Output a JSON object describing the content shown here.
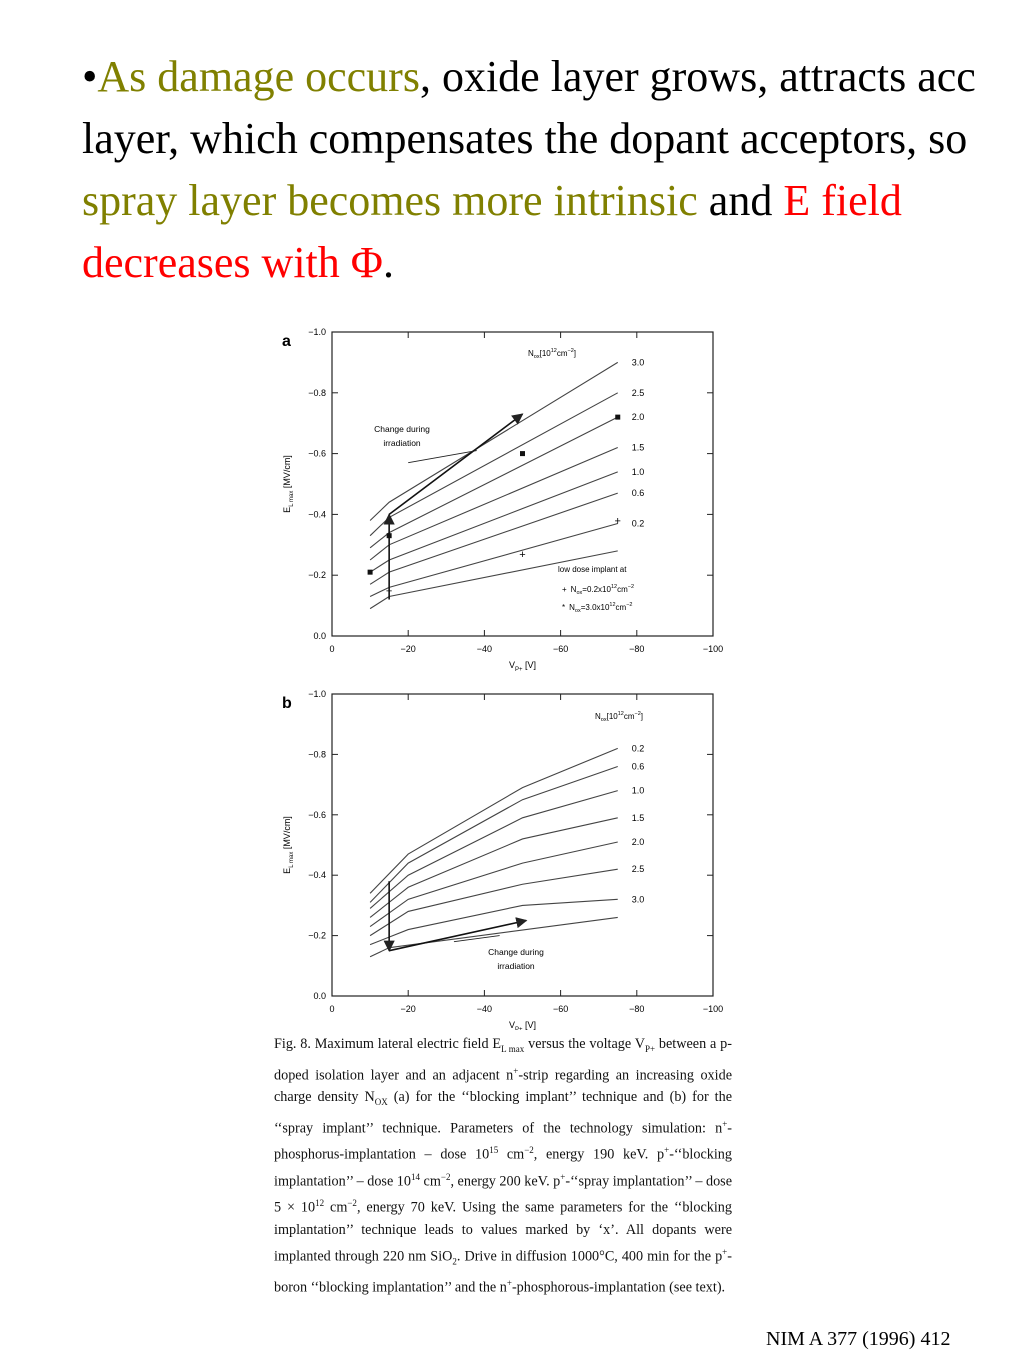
{
  "slide": {
    "bullet": "•",
    "segments": [
      {
        "text": "As damage occurs",
        "color": "olive"
      },
      {
        "text": ", oxide layer grows, attracts acc layer, which compensates the dopant acceptors, so ",
        "color": "black"
      },
      {
        "text": "spray layer becomes more intrinsic",
        "color": "olive"
      },
      {
        "text": " and ",
        "color": "black"
      },
      {
        "text": "E field decreases with Φ",
        "color": "red"
      },
      {
        "text": ".",
        "color": "black"
      }
    ]
  },
  "chart_data": [
    {
      "panel_label": "a",
      "type": "line",
      "xlabel": "V",
      "xlabel_sub": "P+",
      "xlabel_unit": " [V]",
      "ylabel": "E",
      "ylabel_sub": "L max",
      "ylabel_unit": " [MV/cm]",
      "xlim": [
        0,
        -100
      ],
      "ylim": [
        0,
        -1.0
      ],
      "x_ticks": [
        0,
        -20,
        -40,
        -60,
        -80,
        -100
      ],
      "x_tick_labels": [
        "0",
        "−20",
        "−40",
        "−60",
        "−80",
        "−100"
      ],
      "y_ticks": [
        0,
        -0.2,
        -0.4,
        -0.6,
        -0.8,
        -1.0
      ],
      "y_tick_labels": [
        "0.0",
        "−0.2",
        "−0.4",
        "−0.6",
        "−0.8",
        "−1.0"
      ],
      "legend_title": "N",
      "legend_title_sub": "ox",
      "legend_title_unit": "[10",
      "legend_title_exp": "12",
      "legend_title_tail": "cm",
      "legend_title_exp2": "−2",
      "legend_title_end": "]",
      "series": [
        {
          "name": "3.0",
          "x": [
            -10,
            -15,
            -75
          ],
          "y": [
            -0.38,
            -0.44,
            -0.9
          ]
        },
        {
          "name": "2.5",
          "x": [
            -10,
            -15,
            -75
          ],
          "y": [
            -0.33,
            -0.39,
            -0.8
          ]
        },
        {
          "name": "2.0",
          "x": [
            -10,
            -15,
            -75
          ],
          "y": [
            -0.29,
            -0.34,
            -0.72
          ]
        },
        {
          "name": "1.5",
          "x": [
            -10,
            -15,
            -75
          ],
          "y": [
            -0.25,
            -0.3,
            -0.62
          ]
        },
        {
          "name": "1.0",
          "x": [
            -10,
            -15,
            -75
          ],
          "y": [
            -0.21,
            -0.25,
            -0.54
          ]
        },
        {
          "name": "0.6",
          "x": [
            -10,
            -15,
            -75
          ],
          "y": [
            -0.17,
            -0.21,
            -0.47
          ]
        },
        {
          "name": "0.2",
          "x": [
            -10,
            -15,
            -75
          ],
          "y": [
            -0.13,
            -0.16,
            -0.37
          ]
        },
        {
          "name": "",
          "x": [
            -10,
            -15,
            -75
          ],
          "y": [
            -0.09,
            -0.13,
            -0.28
          ]
        }
      ],
      "markers_cross": [
        {
          "x": -15,
          "y": -0.15
        },
        {
          "x": -50,
          "y": -0.27
        },
        {
          "x": -75,
          "y": -0.38
        }
      ],
      "markers_star": [
        {
          "x": -10,
          "y": -0.21
        },
        {
          "x": -15,
          "y": -0.33
        },
        {
          "x": -50,
          "y": -0.6
        },
        {
          "x": -75,
          "y": -0.72
        }
      ],
      "arrows": [
        {
          "from": [
            -15,
            -0.12
          ],
          "to": [
            -15,
            -0.4
          ]
        },
        {
          "from": [
            -15,
            -0.4
          ],
          "to": [
            -50,
            -0.73
          ]
        }
      ],
      "annotation_lines": [
        "Change during",
        "irradiation"
      ],
      "annotation_leader": {
        "from": [
          -38,
          -0.61
        ],
        "to": [
          -20,
          -0.57
        ]
      },
      "inset_title_lines": [
        "low dose implant at"
      ],
      "inset_entries": [
        {
          "symbol": "+",
          "text_pre": "N",
          "text_sub": "ox",
          "text_post": "=0.2x10",
          "text_exp": "12",
          "text_end": "cm",
          "text_exp2": "−2"
        },
        {
          "symbol": "*",
          "text_pre": "N",
          "text_sub": "ox",
          "text_post": "=3.0x10",
          "text_exp": "12",
          "text_end": "cm",
          "text_exp2": "−2"
        }
      ]
    },
    {
      "panel_label": "b",
      "type": "line",
      "xlabel": "V",
      "xlabel_sub": "P+",
      "xlabel_unit": " [V]",
      "ylabel": "E",
      "ylabel_sub": "L max",
      "ylabel_unit": " [MV/cm]",
      "xlim": [
        0,
        -100
      ],
      "ylim": [
        0,
        -1.0
      ],
      "x_ticks": [
        0,
        -20,
        -40,
        -60,
        -80,
        -100
      ],
      "x_tick_labels": [
        "0",
        "−20",
        "−40",
        "−60",
        "−80",
        "−100"
      ],
      "y_ticks": [
        0,
        -0.2,
        -0.4,
        -0.6,
        -0.8,
        -1.0
      ],
      "y_tick_labels": [
        "0.0",
        "−0.2",
        "−0.4",
        "−0.6",
        "−0.8",
        "−1.0"
      ],
      "legend_title": "N",
      "legend_title_sub": "ox",
      "legend_title_unit": "[10",
      "legend_title_exp": "12",
      "legend_title_tail": "cm",
      "legend_title_exp2": "−2",
      "legend_title_end": "]",
      "series": [
        {
          "name": "0.2",
          "x": [
            -10,
            -20,
            -50,
            -75
          ],
          "y": [
            -0.34,
            -0.47,
            -0.69,
            -0.82
          ]
        },
        {
          "name": "0.6",
          "x": [
            -10,
            -20,
            -50,
            -75
          ],
          "y": [
            -0.31,
            -0.44,
            -0.65,
            -0.76
          ]
        },
        {
          "name": "1.0",
          "x": [
            -10,
            -20,
            -50,
            -75
          ],
          "y": [
            -0.29,
            -0.4,
            -0.59,
            -0.68
          ]
        },
        {
          "name": "1.5",
          "x": [
            -10,
            -20,
            -50,
            -75
          ],
          "y": [
            -0.26,
            -0.36,
            -0.52,
            -0.59
          ]
        },
        {
          "name": "2.0",
          "x": [
            -10,
            -20,
            -50,
            -75
          ],
          "y": [
            -0.23,
            -0.32,
            -0.44,
            -0.51
          ]
        },
        {
          "name": "2.5",
          "x": [
            -10,
            -20,
            -50,
            -75
          ],
          "y": [
            -0.2,
            -0.28,
            -0.37,
            -0.42
          ]
        },
        {
          "name": "3.0",
          "x": [
            -10,
            -20,
            -50,
            -75
          ],
          "y": [
            -0.17,
            -0.22,
            -0.3,
            -0.32
          ]
        },
        {
          "name": "",
          "x": [
            -10,
            -15,
            -75
          ],
          "y": [
            -0.13,
            -0.16,
            -0.26
          ]
        }
      ],
      "markers_cross": [],
      "markers_star": [],
      "arrows": [
        {
          "from": [
            -15,
            -0.38
          ],
          "to": [
            -15,
            -0.15
          ]
        },
        {
          "from": [
            -15,
            -0.15
          ],
          "to": [
            -51,
            -0.25
          ]
        }
      ],
      "annotation_lines": [
        "Change during",
        "irradiation"
      ],
      "annotation_leader": {
        "from": [
          -44,
          -0.2
        ],
        "to": [
          -32,
          -0.18
        ]
      },
      "inset_title_lines": [],
      "inset_entries": []
    }
  ],
  "caption": {
    "lines": [
      "Fig. 8. Maximum lateral electric field E",
      "L max",
      " versus the voltage V",
      "P+",
      " between a p-doped isolation layer and an adjacent n",
      "+",
      "-strip regarding an increasing oxide charge density N",
      "OX",
      " (a) for the ‘‘blocking implant’’ technique and (b) for the ‘‘spray implant’’ technique. Parameters of the technology simulation: n",
      "+",
      "-phosphorus-implantation – dose 10",
      "15",
      " cm",
      "−2",
      ", energy 190 keV. p",
      "+",
      "-‘‘blocking implantation’’ – dose 10",
      "14",
      " cm",
      "−2",
      ", energy 200 keV. p",
      "+",
      "-‘‘spray implantation’’ – dose 5 × 10",
      "12",
      " cm",
      "−2",
      ", energy 70 keV. Using the same parameters for the ‘‘blocking implantation’’ technique leads to values marked by ‘x’. All dopants were implanted through 220 nm SiO",
      "2",
      ". Drive in diffusion 1000°C, 400 min for the p",
      "+",
      "-boron ‘‘blocking implantation’’ and the n",
      "+",
      "-phosphorous-implantation (see text)."
    ]
  },
  "reference": "NIM A 377 (1996) 412"
}
